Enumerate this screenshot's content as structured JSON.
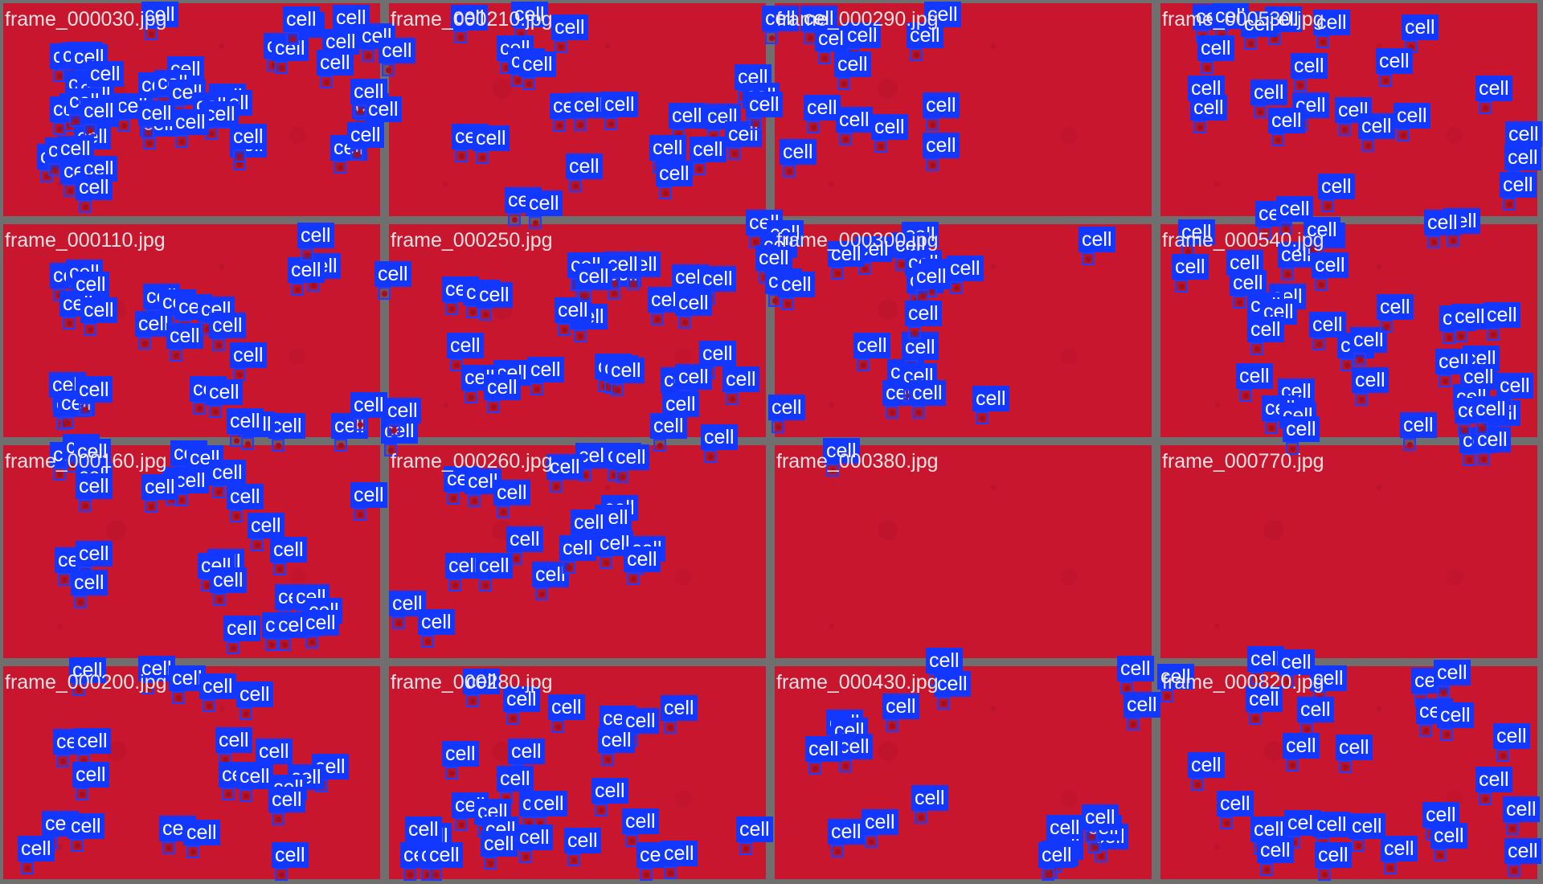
{
  "tiles": [
    {
      "name": "frame_000030.jpg"
    },
    {
      "name": "frame_000210.jpg"
    },
    {
      "name": "frame_000290.jpg"
    },
    {
      "name": "frame_000530.jpg"
    },
    {
      "name": "frame_000110.jpg"
    },
    {
      "name": "frame_000250.jpg"
    },
    {
      "name": "frame_000300.jpg"
    },
    {
      "name": "frame_000540.jpg"
    },
    {
      "name": "frame_000160.jpg"
    },
    {
      "name": "frame_000260.jpg"
    },
    {
      "name": "frame_000380.jpg"
    },
    {
      "name": "frame_000770.jpg"
    },
    {
      "name": "frame_000200.jpg"
    },
    {
      "name": "frame_000280.jpg"
    },
    {
      "name": "frame_000430.jpg"
    },
    {
      "name": "frame_000820.jpg"
    }
  ],
  "detection_label": "cell",
  "colors": {
    "background": "#6f6f6f",
    "tile": "#c8162f",
    "label_background": "#1237ff",
    "box_stroke": "#1f3cff",
    "label_text": "#ffffff"
  }
}
